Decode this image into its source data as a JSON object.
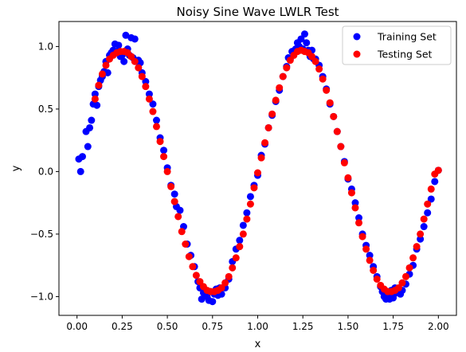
{
  "chart_data": {
    "type": "scatter",
    "title": "Noisy Sine Wave LWLR Test",
    "xlabel": "x",
    "ylabel": "y",
    "xlim": [
      -0.1,
      2.1
    ],
    "ylim": [
      -1.15,
      1.2
    ],
    "xticks": [
      0.0,
      0.25,
      0.5,
      0.75,
      1.0,
      1.25,
      1.5,
      1.75,
      2.0
    ],
    "xtick_labels": [
      "0.00",
      "0.25",
      "0.50",
      "0.75",
      "1.00",
      "1.25",
      "1.50",
      "1.75",
      "2.00"
    ],
    "yticks": [
      -1.0,
      -0.5,
      0.0,
      0.5,
      1.0
    ],
    "ytick_labels": [
      "−1.0",
      "−0.5",
      "0.0",
      "0.5",
      "1.0"
    ],
    "grid": false,
    "legend_position": "top-right",
    "series": [
      {
        "name": "Training Set",
        "color": "#0000ff",
        "points": [
          [
            0.01,
            0.1
          ],
          [
            0.02,
            0.0
          ],
          [
            0.03,
            0.12
          ],
          [
            0.05,
            0.32
          ],
          [
            0.06,
            0.2
          ],
          [
            0.07,
            0.35
          ],
          [
            0.08,
            0.41
          ],
          [
            0.09,
            0.54
          ],
          [
            0.1,
            0.62
          ],
          [
            0.11,
            0.53
          ],
          [
            0.12,
            0.68
          ],
          [
            0.13,
            0.73
          ],
          [
            0.14,
            0.76
          ],
          [
            0.15,
            0.8
          ],
          [
            0.16,
            0.88
          ],
          [
            0.17,
            0.79
          ],
          [
            0.18,
            0.93
          ],
          [
            0.19,
            0.95
          ],
          [
            0.2,
            0.97
          ],
          [
            0.21,
            1.02
          ],
          [
            0.22,
            0.96
          ],
          [
            0.23,
            1.01
          ],
          [
            0.24,
            0.92
          ],
          [
            0.25,
            0.93
          ],
          [
            0.26,
            0.88
          ],
          [
            0.27,
            1.09
          ],
          [
            0.28,
            0.98
          ],
          [
            0.29,
            0.93
          ],
          [
            0.3,
            1.07
          ],
          [
            0.31,
            0.91
          ],
          [
            0.32,
            1.06
          ],
          [
            0.33,
            0.88
          ],
          [
            0.34,
            0.89
          ],
          [
            0.35,
            0.87
          ],
          [
            0.36,
            0.79
          ],
          [
            0.38,
            0.72
          ],
          [
            0.4,
            0.62
          ],
          [
            0.42,
            0.54
          ],
          [
            0.44,
            0.41
          ],
          [
            0.46,
            0.27
          ],
          [
            0.48,
            0.17
          ],
          [
            0.5,
            0.03
          ],
          [
            0.52,
            -0.11
          ],
          [
            0.54,
            -0.18
          ],
          [
            0.55,
            -0.28
          ],
          [
            0.57,
            -0.31
          ],
          [
            0.59,
            -0.44
          ],
          [
            0.61,
            -0.58
          ],
          [
            0.63,
            -0.67
          ],
          [
            0.65,
            -0.76
          ],
          [
            0.67,
            -0.88
          ],
          [
            0.68,
            -0.93
          ],
          [
            0.69,
            -1.02
          ],
          [
            0.7,
            -0.97
          ],
          [
            0.71,
            -0.95
          ],
          [
            0.72,
            -1.0
          ],
          [
            0.73,
            -1.03
          ],
          [
            0.74,
            -0.96
          ],
          [
            0.75,
            -1.04
          ],
          [
            0.76,
            -0.98
          ],
          [
            0.77,
            -0.94
          ],
          [
            0.78,
            -0.99
          ],
          [
            0.79,
            -0.93
          ],
          [
            0.8,
            -0.98
          ],
          [
            0.82,
            -0.93
          ],
          [
            0.84,
            -0.86
          ],
          [
            0.86,
            -0.72
          ],
          [
            0.88,
            -0.62
          ],
          [
            0.9,
            -0.55
          ],
          [
            0.92,
            -0.43
          ],
          [
            0.94,
            -0.33
          ],
          [
            0.96,
            -0.2
          ],
          [
            0.98,
            -0.11
          ],
          [
            1.0,
            -0.03
          ],
          [
            1.02,
            0.13
          ],
          [
            1.04,
            0.22
          ],
          [
            1.06,
            0.35
          ],
          [
            1.08,
            0.45
          ],
          [
            1.1,
            0.56
          ],
          [
            1.12,
            0.65
          ],
          [
            1.14,
            0.76
          ],
          [
            1.16,
            0.84
          ],
          [
            1.17,
            0.91
          ],
          [
            1.18,
            0.9
          ],
          [
            1.19,
            0.96
          ],
          [
            1.2,
            0.95
          ],
          [
            1.21,
            0.98
          ],
          [
            1.22,
            1.03
          ],
          [
            1.23,
            1.0
          ],
          [
            1.24,
            1.06
          ],
          [
            1.25,
            0.98
          ],
          [
            1.26,
            1.1
          ],
          [
            1.27,
            1.03
          ],
          [
            1.28,
            0.97
          ],
          [
            1.29,
            0.92
          ],
          [
            1.3,
            0.97
          ],
          [
            1.31,
            0.9
          ],
          [
            1.32,
            0.9
          ],
          [
            1.34,
            0.85
          ],
          [
            1.36,
            0.76
          ],
          [
            1.38,
            0.66
          ],
          [
            1.4,
            0.54
          ],
          [
            1.42,
            0.44
          ],
          [
            1.44,
            0.32
          ],
          [
            1.46,
            0.2
          ],
          [
            1.48,
            0.08
          ],
          [
            1.5,
            -0.06
          ],
          [
            1.52,
            -0.14
          ],
          [
            1.54,
            -0.25
          ],
          [
            1.56,
            -0.37
          ],
          [
            1.58,
            -0.5
          ],
          [
            1.6,
            -0.59
          ],
          [
            1.62,
            -0.67
          ],
          [
            1.64,
            -0.76
          ],
          [
            1.66,
            -0.84
          ],
          [
            1.68,
            -0.92
          ],
          [
            1.69,
            -0.96
          ],
          [
            1.7,
            -1.0
          ],
          [
            1.71,
            -1.02
          ],
          [
            1.72,
            -0.99
          ],
          [
            1.73,
            -1.02
          ],
          [
            1.74,
            -0.95
          ],
          [
            1.75,
            -1.01
          ],
          [
            1.76,
            -0.93
          ],
          [
            1.77,
            -0.97
          ],
          [
            1.78,
            -0.95
          ],
          [
            1.79,
            -0.98
          ],
          [
            1.8,
            -0.95
          ],
          [
            1.82,
            -0.9
          ],
          [
            1.84,
            -0.82
          ],
          [
            1.86,
            -0.75
          ],
          [
            1.88,
            -0.62
          ],
          [
            1.9,
            -0.54
          ],
          [
            1.92,
            -0.44
          ],
          [
            1.94,
            -0.33
          ],
          [
            1.96,
            -0.22
          ],
          [
            1.98,
            -0.08
          ],
          [
            2.0,
            0.01
          ]
        ]
      },
      {
        "name": "Testing Set",
        "color": "#ff0000",
        "points": [
          [
            0.1,
            0.58
          ],
          [
            0.12,
            0.69
          ],
          [
            0.14,
            0.78
          ],
          [
            0.16,
            0.85
          ],
          [
            0.18,
            0.9
          ],
          [
            0.2,
            0.93
          ],
          [
            0.22,
            0.95
          ],
          [
            0.24,
            0.96
          ],
          [
            0.26,
            0.96
          ],
          [
            0.28,
            0.95
          ],
          [
            0.3,
            0.92
          ],
          [
            0.32,
            0.88
          ],
          [
            0.34,
            0.83
          ],
          [
            0.36,
            0.76
          ],
          [
            0.38,
            0.68
          ],
          [
            0.4,
            0.58
          ],
          [
            0.42,
            0.48
          ],
          [
            0.44,
            0.36
          ],
          [
            0.46,
            0.24
          ],
          [
            0.48,
            0.12
          ],
          [
            0.5,
            0.0
          ],
          [
            0.52,
            -0.12
          ],
          [
            0.54,
            -0.24
          ],
          [
            0.56,
            -0.36
          ],
          [
            0.58,
            -0.48
          ],
          [
            0.6,
            -0.58
          ],
          [
            0.62,
            -0.68
          ],
          [
            0.64,
            -0.76
          ],
          [
            0.66,
            -0.83
          ],
          [
            0.68,
            -0.88
          ],
          [
            0.7,
            -0.92
          ],
          [
            0.72,
            -0.95
          ],
          [
            0.74,
            -0.96
          ],
          [
            0.76,
            -0.96
          ],
          [
            0.78,
            -0.95
          ],
          [
            0.8,
            -0.93
          ],
          [
            0.82,
            -0.89
          ],
          [
            0.84,
            -0.84
          ],
          [
            0.86,
            -0.77
          ],
          [
            0.88,
            -0.69
          ],
          [
            0.9,
            -0.6
          ],
          [
            0.92,
            -0.5
          ],
          [
            0.94,
            -0.38
          ],
          [
            0.96,
            -0.26
          ],
          [
            0.98,
            -0.13
          ],
          [
            1.0,
            -0.01
          ],
          [
            1.02,
            0.11
          ],
          [
            1.04,
            0.23
          ],
          [
            1.06,
            0.35
          ],
          [
            1.08,
            0.46
          ],
          [
            1.1,
            0.57
          ],
          [
            1.12,
            0.67
          ],
          [
            1.14,
            0.76
          ],
          [
            1.16,
            0.83
          ],
          [
            1.18,
            0.89
          ],
          [
            1.2,
            0.93
          ],
          [
            1.22,
            0.96
          ],
          [
            1.24,
            0.97
          ],
          [
            1.26,
            0.96
          ],
          [
            1.28,
            0.95
          ],
          [
            1.3,
            0.92
          ],
          [
            1.32,
            0.88
          ],
          [
            1.34,
            0.82
          ],
          [
            1.36,
            0.74
          ],
          [
            1.38,
            0.65
          ],
          [
            1.4,
            0.55
          ],
          [
            1.42,
            0.44
          ],
          [
            1.44,
            0.32
          ],
          [
            1.46,
            0.2
          ],
          [
            1.48,
            0.07
          ],
          [
            1.5,
            -0.05
          ],
          [
            1.52,
            -0.17
          ],
          [
            1.54,
            -0.29
          ],
          [
            1.56,
            -0.41
          ],
          [
            1.58,
            -0.52
          ],
          [
            1.6,
            -0.62
          ],
          [
            1.62,
            -0.71
          ],
          [
            1.64,
            -0.79
          ],
          [
            1.66,
            -0.86
          ],
          [
            1.68,
            -0.91
          ],
          [
            1.7,
            -0.94
          ],
          [
            1.72,
            -0.96
          ],
          [
            1.74,
            -0.96
          ],
          [
            1.76,
            -0.95
          ],
          [
            1.78,
            -0.93
          ],
          [
            1.8,
            -0.89
          ],
          [
            1.82,
            -0.84
          ],
          [
            1.84,
            -0.77
          ],
          [
            1.86,
            -0.69
          ],
          [
            1.88,
            -0.6
          ],
          [
            1.9,
            -0.5
          ],
          [
            1.92,
            -0.38
          ],
          [
            1.94,
            -0.26
          ],
          [
            1.96,
            -0.14
          ],
          [
            1.98,
            -0.02
          ],
          [
            2.0,
            0.01
          ]
        ]
      }
    ]
  }
}
